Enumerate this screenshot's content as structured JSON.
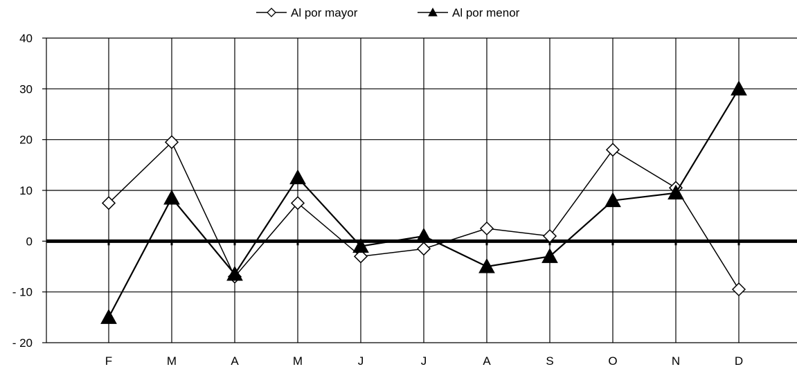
{
  "chart_data": {
    "type": "line",
    "categories": [
      "F",
      "M",
      "A",
      "M",
      "J",
      "J",
      "A",
      "S",
      "O",
      "N",
      "D"
    ],
    "ylim": [
      -20,
      40
    ],
    "y_ticks": [
      "40",
      "30",
      "20",
      "10",
      "0",
      "- 10",
      "- 20"
    ],
    "y_tick_values": [
      40,
      30,
      20,
      10,
      0,
      -10,
      -20
    ],
    "grid": true,
    "legend_position": "top-center",
    "series": [
      {
        "name": "Al por mayor",
        "marker": "diamond-open",
        "color": "#000000",
        "values": [
          7.5,
          19.5,
          -7,
          7.5,
          -3,
          -1.5,
          2.5,
          1,
          18,
          10.5,
          -9.5
        ]
      },
      {
        "name": "Al por menor",
        "marker": "triangle-filled",
        "color": "#000000",
        "values": [
          -15,
          8.5,
          -6.5,
          12.5,
          -1,
          1,
          -5,
          -3,
          8,
          9.5,
          30
        ]
      }
    ]
  }
}
